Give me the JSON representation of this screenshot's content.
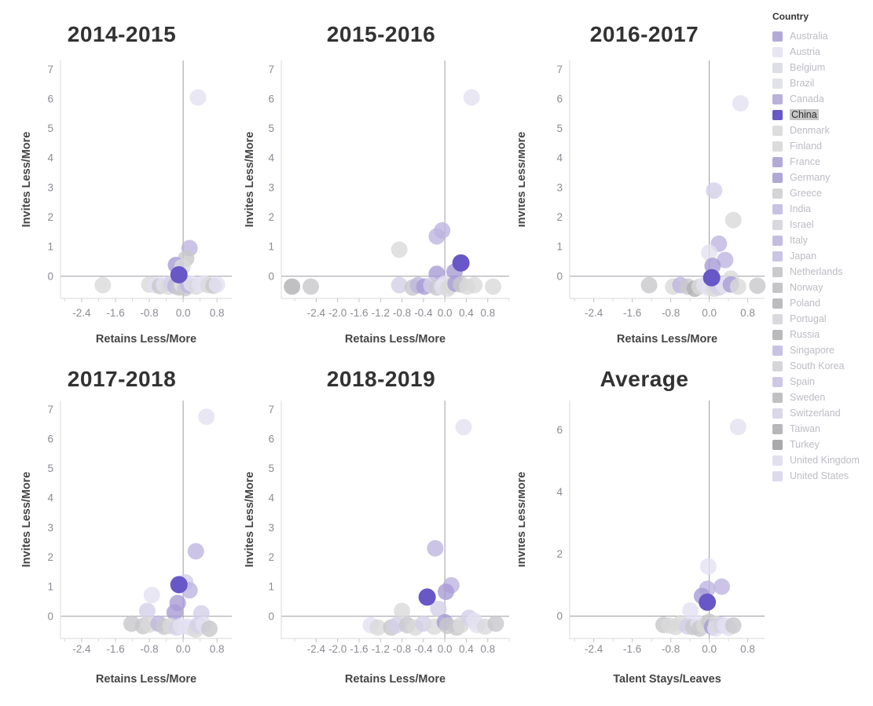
{
  "legend": {
    "title": "Country",
    "selected": "China",
    "items": [
      {
        "label": "Australia",
        "color": "#b3abd6"
      },
      {
        "label": "Austria",
        "color": "#e7e5f2"
      },
      {
        "label": "Belgium",
        "color": "#dedee6"
      },
      {
        "label": "Brazil",
        "color": "#e2e2e9"
      },
      {
        "label": "Canada",
        "color": "#b9b1d9"
      },
      {
        "label": "China",
        "color": "#6857c6"
      },
      {
        "label": "Denmark",
        "color": "#dedede"
      },
      {
        "label": "Finland",
        "color": "#dcdcdc"
      },
      {
        "label": "France",
        "color": "#b2aad5"
      },
      {
        "label": "Germany",
        "color": "#b0a8d4"
      },
      {
        "label": "Greece",
        "color": "#d5d5d8"
      },
      {
        "label": "India",
        "color": "#c7c1e2"
      },
      {
        "label": "Israel",
        "color": "#d8d8de"
      },
      {
        "label": "Italy",
        "color": "#c4bde0"
      },
      {
        "label": "Japan",
        "color": "#cac5e4"
      },
      {
        "label": "Netherlands",
        "color": "#cacacd"
      },
      {
        "label": "Norway",
        "color": "#c5c5c8"
      },
      {
        "label": "Poland",
        "color": "#bcbcbf"
      },
      {
        "label": "Portugal",
        "color": "#dadade"
      },
      {
        "label": "Russia",
        "color": "#bababd"
      },
      {
        "label": "Singapore",
        "color": "#c9c3e3"
      },
      {
        "label": "South Korea",
        "color": "#d6d6da"
      },
      {
        "label": "Spain",
        "color": "#cec8e6"
      },
      {
        "label": "Sweden",
        "color": "#c0c0c3"
      },
      {
        "label": "Switzerland",
        "color": "#dad7ea"
      },
      {
        "label": "Taiwan",
        "color": "#b7b7ba"
      },
      {
        "label": "Turkey",
        "color": "#a9a9ac"
      },
      {
        "label": "United Kingdom",
        "color": "#e2dff0"
      },
      {
        "label": "United States",
        "color": "#dedbee"
      }
    ]
  },
  "colors": {
    "palette": {
      "L1": "#e4e1f1",
      "L2": "#d4cfe8",
      "P1": "#beb5e0",
      "P2": "#a89cd6",
      "G1": "#dadada",
      "G2": "#c8c8cb",
      "G3": "#b0b0b4",
      "CN": "#6857c6"
    },
    "zero_line": "#9c9ca3",
    "axis_line": "#d8d8d8",
    "tick_label": "#8b8b93",
    "axis_title": "#454545",
    "chart_title": "#323232"
  },
  "chart_data": [
    {
      "type": "scatter",
      "title": "2014-2015",
      "xlabel": "Retains Less/More",
      "ylabel": "Invites Less/More",
      "xlim": [
        -2.9,
        1.15
      ],
      "ylim": [
        -0.75,
        7.3
      ],
      "xticks": [
        -2.4,
        -1.6,
        -0.8,
        0.0,
        0.8
      ],
      "yticks": [
        0,
        1,
        2,
        3,
        4,
        5,
        6,
        7
      ],
      "zero_lines": true,
      "highlighted_series": "China",
      "points": [
        [
          0.35,
          6.05,
          "L1"
        ],
        [
          0.15,
          0.95,
          "P1"
        ],
        [
          0.07,
          0.6,
          "G2"
        ],
        [
          -0.17,
          0.38,
          "P2"
        ],
        [
          -0.02,
          0.32,
          "G1"
        ],
        [
          -1.9,
          -0.3,
          "G1"
        ],
        [
          -0.8,
          -0.28,
          "G1"
        ],
        [
          -0.65,
          -0.3,
          "L1"
        ],
        [
          -0.55,
          -0.33,
          "G2"
        ],
        [
          -0.45,
          -0.28,
          "L1"
        ],
        [
          -0.35,
          -0.35,
          "G1"
        ],
        [
          -0.28,
          -0.25,
          "L2"
        ],
        [
          -0.18,
          -0.33,
          "P1"
        ],
        [
          -0.1,
          -0.38,
          "G2"
        ],
        [
          -0.02,
          -0.28,
          "L1"
        ],
        [
          0.05,
          -0.4,
          "G2"
        ],
        [
          0.12,
          -0.3,
          "P1"
        ],
        [
          0.2,
          -0.25,
          "L1"
        ],
        [
          0.3,
          -0.35,
          "G1"
        ],
        [
          0.4,
          -0.28,
          "L1"
        ],
        [
          0.5,
          -0.25,
          "L1"
        ],
        [
          0.6,
          -0.3,
          "G1"
        ],
        [
          0.72,
          -0.32,
          "G2"
        ],
        [
          0.8,
          -0.28,
          "L1"
        ],
        [
          -0.1,
          0.05,
          "CN"
        ]
      ]
    },
    {
      "type": "scatter",
      "title": "2015-2016",
      "xlabel": "Retains Less/More",
      "ylabel": "Invites Less/More",
      "xlim": [
        -3.05,
        1.2
      ],
      "ylim": [
        -0.75,
        7.3
      ],
      "xticks": [
        -2.4,
        -2.0,
        -1.6,
        -1.2,
        -0.8,
        -0.4,
        0.0,
        0.4,
        0.8
      ],
      "yticks": [
        0,
        1,
        2,
        3,
        4,
        5,
        6,
        7
      ],
      "zero_lines": true,
      "highlighted_series": "China",
      "points": [
        [
          0.5,
          6.05,
          "L1"
        ],
        [
          -0.05,
          1.55,
          "P1"
        ],
        [
          -0.15,
          1.35,
          "P1"
        ],
        [
          -0.85,
          0.9,
          "G1"
        ],
        [
          0.18,
          0.15,
          "P2"
        ],
        [
          -0.15,
          0.08,
          "P2"
        ],
        [
          -2.85,
          -0.35,
          "G3"
        ],
        [
          -2.5,
          -0.35,
          "G2"
        ],
        [
          -0.85,
          -0.3,
          "L2"
        ],
        [
          -0.6,
          -0.38,
          "G2"
        ],
        [
          -0.5,
          -0.3,
          "P1"
        ],
        [
          -0.38,
          -0.35,
          "P2"
        ],
        [
          -0.25,
          -0.3,
          "L2"
        ],
        [
          -0.15,
          -0.38,
          "G2"
        ],
        [
          -0.05,
          -0.35,
          "L1"
        ],
        [
          0.0,
          -0.25,
          "L1"
        ],
        [
          0.05,
          -0.42,
          "G1"
        ],
        [
          0.1,
          -0.32,
          "G1"
        ],
        [
          0.2,
          -0.25,
          "P2"
        ],
        [
          0.3,
          -0.28,
          "G2"
        ],
        [
          0.42,
          -0.35,
          "G1"
        ],
        [
          0.55,
          -0.3,
          "G1"
        ],
        [
          0.9,
          -0.35,
          "G1"
        ],
        [
          0.3,
          0.45,
          "CN"
        ]
      ]
    },
    {
      "type": "scatter",
      "title": "2016-2017",
      "xlabel": "Retains Less/More",
      "ylabel": "Invites Less/More",
      "xlim": [
        -2.9,
        1.15
      ],
      "ylim": [
        -0.75,
        7.3
      ],
      "xticks": [
        -2.4,
        -1.6,
        -0.8,
        0.0,
        0.8
      ],
      "yticks": [
        0,
        1,
        2,
        3,
        4,
        5,
        6,
        7
      ],
      "zero_lines": true,
      "highlighted_series": "China",
      "points": [
        [
          0.65,
          5.85,
          "L1"
        ],
        [
          0.1,
          2.9,
          "L2"
        ],
        [
          0.5,
          1.9,
          "G1"
        ],
        [
          0.2,
          1.1,
          "P1"
        ],
        [
          0.0,
          0.8,
          "L1"
        ],
        [
          0.33,
          0.55,
          "P1"
        ],
        [
          0.07,
          0.35,
          "P2"
        ],
        [
          0.45,
          -0.08,
          "G1"
        ],
        [
          -1.25,
          -0.3,
          "G2"
        ],
        [
          -0.75,
          -0.35,
          "G1"
        ],
        [
          -0.6,
          -0.3,
          "P1"
        ],
        [
          -0.45,
          -0.35,
          "G2"
        ],
        [
          -0.3,
          -0.42,
          "G3"
        ],
        [
          -0.2,
          -0.35,
          "G1"
        ],
        [
          -0.1,
          -0.3,
          "L1"
        ],
        [
          0.0,
          -0.4,
          "L1"
        ],
        [
          0.1,
          -0.42,
          "G1"
        ],
        [
          0.15,
          -0.25,
          "L2"
        ],
        [
          0.2,
          -0.38,
          "L2"
        ],
        [
          0.3,
          -0.3,
          "L1"
        ],
        [
          0.45,
          -0.28,
          "P2"
        ],
        [
          0.6,
          -0.35,
          "G1"
        ],
        [
          1.0,
          -0.32,
          "G2"
        ],
        [
          0.05,
          -0.05,
          "CN"
        ]
      ]
    },
    {
      "type": "scatter",
      "title": "2017-2018",
      "xlabel": "Retains Less/More",
      "ylabel": "Invites Less/More",
      "xlim": [
        -2.9,
        1.15
      ],
      "ylim": [
        -0.75,
        7.3
      ],
      "xticks": [
        -2.4,
        -1.6,
        -0.8,
        0.0,
        0.8
      ],
      "yticks": [
        0,
        1,
        2,
        3,
        4,
        5,
        6,
        7
      ],
      "zero_lines": true,
      "highlighted_series": "China",
      "points": [
        [
          0.55,
          6.75,
          "L1"
        ],
        [
          0.3,
          2.2,
          "P1"
        ],
        [
          0.05,
          1.15,
          "L2"
        ],
        [
          0.15,
          0.88,
          "P1"
        ],
        [
          -0.74,
          0.72,
          "L1"
        ],
        [
          -0.13,
          0.45,
          "P2"
        ],
        [
          -0.85,
          0.18,
          "L2"
        ],
        [
          -0.2,
          0.13,
          "P2"
        ],
        [
          0.43,
          0.1,
          "L2"
        ],
        [
          -1.22,
          -0.25,
          "G2"
        ],
        [
          -0.95,
          -0.33,
          "G2"
        ],
        [
          -0.8,
          -0.28,
          "G1"
        ],
        [
          -0.58,
          -0.25,
          "P1"
        ],
        [
          -0.45,
          -0.35,
          "G2"
        ],
        [
          -0.3,
          -0.33,
          "G1"
        ],
        [
          -0.15,
          -0.38,
          "L2"
        ],
        [
          -0.05,
          -0.33,
          "L1"
        ],
        [
          0.1,
          -0.35,
          "L1"
        ],
        [
          0.22,
          -0.4,
          "L1"
        ],
        [
          0.3,
          -0.45,
          "G1"
        ],
        [
          0.35,
          -0.3,
          "L2"
        ],
        [
          0.48,
          -0.28,
          "L1"
        ],
        [
          0.62,
          -0.42,
          "G2"
        ],
        [
          -0.1,
          1.07,
          "CN"
        ]
      ]
    },
    {
      "type": "scatter",
      "title": "2018-2019",
      "xlabel": "Retains Less/More",
      "ylabel": "Invites Less/More",
      "xlim": [
        -3.05,
        1.2
      ],
      "ylim": [
        -0.75,
        7.3
      ],
      "xticks": [
        -2.4,
        -2.0,
        -1.6,
        -1.2,
        -0.8,
        -0.4,
        0.0,
        0.4,
        0.8
      ],
      "yticks": [
        0,
        1,
        2,
        3,
        4,
        5,
        6,
        7
      ],
      "zero_lines": true,
      "highlighted_series": "China",
      "points": [
        [
          0.35,
          6.4,
          "L1"
        ],
        [
          -0.18,
          2.3,
          "P1"
        ],
        [
          0.12,
          1.05,
          "P1"
        ],
        [
          0.02,
          0.83,
          "P2"
        ],
        [
          -0.12,
          0.25,
          "L2"
        ],
        [
          -0.8,
          0.18,
          "G1"
        ],
        [
          -1.38,
          -0.3,
          "L1"
        ],
        [
          -1.25,
          -0.38,
          "G1"
        ],
        [
          -1.0,
          -0.38,
          "G2"
        ],
        [
          -0.9,
          -0.3,
          "L2"
        ],
        [
          -0.7,
          -0.3,
          "G2"
        ],
        [
          -0.55,
          -0.38,
          "G1"
        ],
        [
          -0.4,
          -0.25,
          "L2"
        ],
        [
          -0.2,
          -0.35,
          "G1"
        ],
        [
          0.0,
          -0.2,
          "P2"
        ],
        [
          0.05,
          -0.32,
          "G2"
        ],
        [
          0.22,
          -0.38,
          "G2"
        ],
        [
          0.3,
          -0.3,
          "G1"
        ],
        [
          0.45,
          -0.05,
          "L2"
        ],
        [
          0.55,
          -0.15,
          "L1"
        ],
        [
          0.6,
          -0.3,
          "L1"
        ],
        [
          0.75,
          -0.35,
          "G1"
        ],
        [
          0.95,
          -0.25,
          "G2"
        ],
        [
          -0.33,
          0.65,
          "CN"
        ]
      ]
    },
    {
      "type": "scatter",
      "title": "Average",
      "xlabel": "Talent Stays/Leaves",
      "ylabel": "Invites Less/More",
      "xlim": [
        -2.9,
        1.15
      ],
      "ylim": [
        -0.72,
        6.95
      ],
      "xticks": [
        -2.4,
        -1.6,
        -0.8,
        0.0,
        0.8
      ],
      "yticks": [
        0,
        2,
        4,
        6
      ],
      "zero_lines": true,
      "highlighted_series": "China",
      "points": [
        [
          0.6,
          6.1,
          "L1"
        ],
        [
          -0.02,
          1.6,
          "L1"
        ],
        [
          0.26,
          0.95,
          "P1"
        ],
        [
          -0.04,
          0.88,
          "P1"
        ],
        [
          -0.15,
          0.65,
          "P2"
        ],
        [
          -0.39,
          0.18,
          "L1"
        ],
        [
          -0.95,
          -0.28,
          "G2"
        ],
        [
          -0.83,
          -0.3,
          "G1"
        ],
        [
          -0.7,
          -0.35,
          "G1"
        ],
        [
          -0.6,
          -0.23,
          "G1"
        ],
        [
          -0.45,
          -0.33,
          "L2"
        ],
        [
          -0.33,
          -0.35,
          "G2"
        ],
        [
          -0.22,
          -0.23,
          "L1"
        ],
        [
          -0.2,
          -0.4,
          "G2"
        ],
        [
          -0.1,
          -0.3,
          "G1"
        ],
        [
          0.0,
          -0.18,
          "G2"
        ],
        [
          0.06,
          -0.35,
          "P2"
        ],
        [
          0.13,
          -0.4,
          "L1"
        ],
        [
          0.15,
          -0.25,
          "G1"
        ],
        [
          0.25,
          -0.28,
          "L2"
        ],
        [
          0.33,
          -0.3,
          "L1"
        ],
        [
          0.4,
          -0.38,
          "L1"
        ],
        [
          0.5,
          -0.3,
          "G2"
        ],
        [
          -0.04,
          0.45,
          "CN"
        ]
      ]
    }
  ]
}
